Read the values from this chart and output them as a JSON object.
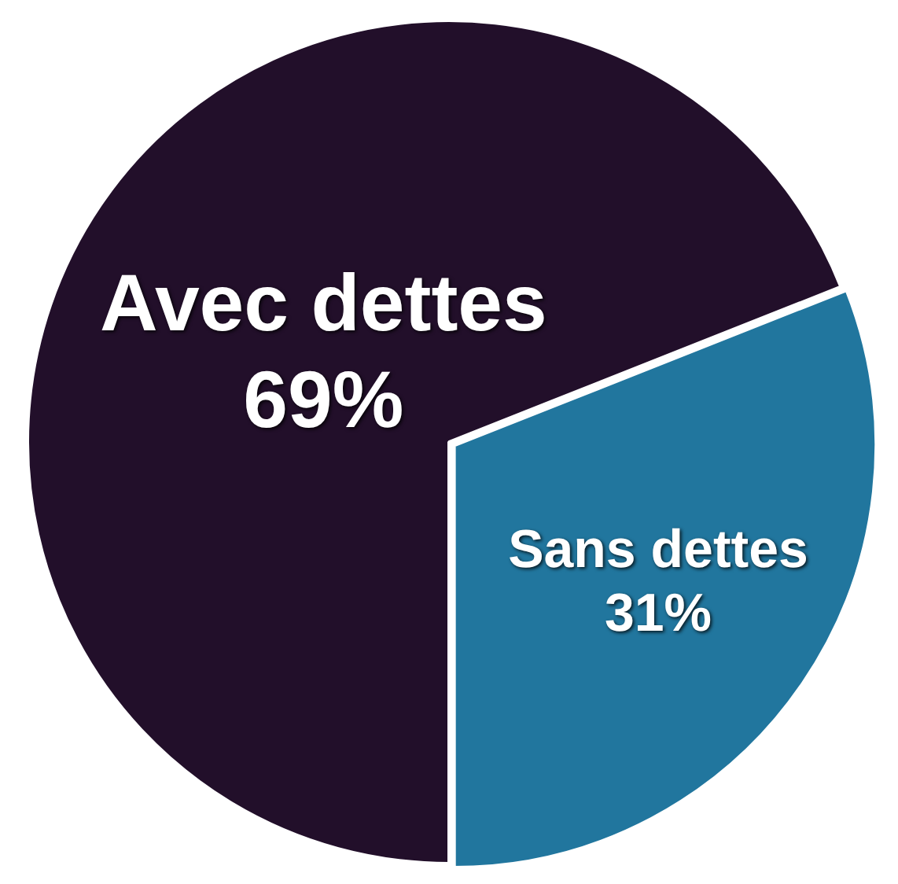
{
  "chart_data": {
    "type": "pie",
    "categories": [
      "Avec dettes",
      "Sans dettes"
    ],
    "values": [
      69,
      31
    ],
    "colors": [
      "#220f2a",
      "#21769e"
    ],
    "value_labels": [
      "69%",
      "31%"
    ],
    "legend": false
  }
}
